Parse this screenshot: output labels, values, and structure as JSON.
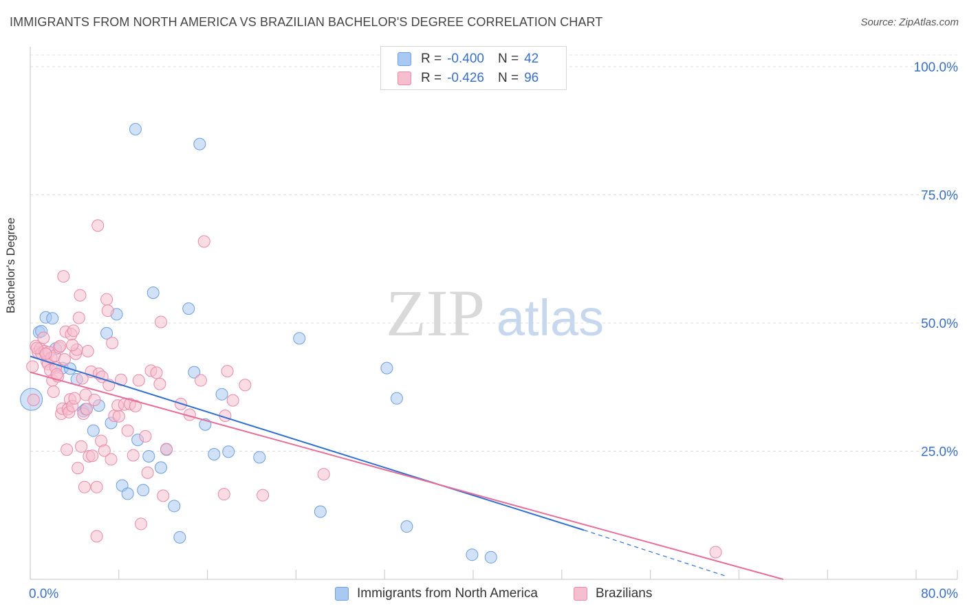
{
  "title": "IMMIGRANTS FROM NORTH AMERICA VS BRAZILIAN BACHELOR'S DEGREE CORRELATION CHART",
  "source": "Source: ZipAtlas.com",
  "watermark": {
    "zip": "ZIP",
    "atlas": "atlas"
  },
  "legend": {
    "rows": [
      {
        "r_label": "R = ",
        "r_value": "-0.400",
        "n_label": "N = ",
        "n_value": "42",
        "color": "#a9c8f2",
        "border": "#6c9fe0"
      },
      {
        "r_label": "R = ",
        "r_value": "-0.426",
        "n_label": "N = ",
        "n_value": "96",
        "color": "#f6bfd0",
        "border": "#e889a8"
      }
    ]
  },
  "bottom_legend": {
    "items": [
      {
        "label": "Immigrants from North America",
        "color": "#a9c8f2",
        "border": "#6c9fe0"
      },
      {
        "label": "Brazilians",
        "color": "#f6bfd0",
        "border": "#e889a8"
      }
    ]
  },
  "chart_data": {
    "type": "scatter",
    "title": "IMMIGRANTS FROM NORTH AMERICA VS BRAZILIAN BACHELOR'S DEGREE CORRELATION CHART",
    "xlabel": "",
    "ylabel": "Bachelor's Degree",
    "xlim": [
      0,
      80
    ],
    "ylim": [
      0,
      100
    ],
    "x_tick_labels": [
      "0.0%",
      "80.0%"
    ],
    "y_tick_labels": [
      "100.0%",
      "75.0%",
      "50.0%",
      "25.0%"
    ],
    "y_ticks": [
      100,
      75,
      50,
      25
    ],
    "grid": true,
    "series": [
      {
        "name": "Immigrants from North America",
        "color": "#6c9fe0",
        "fill": "#a9c8f2",
        "line_color": "#2f6fd0",
        "trend": {
          "x": [
            0,
            50
          ],
          "y": [
            43.5,
            9.6
          ],
          "dashed_to": [
            63,
            0.5
          ]
        },
        "points": [
          {
            "x": 0.1,
            "y": 35.1,
            "big": true
          },
          {
            "x": 0.8,
            "y": 48.2
          },
          {
            "x": 1.4,
            "y": 51.1
          },
          {
            "x": 2.0,
            "y": 50.9
          },
          {
            "x": 2.3,
            "y": 45.0
          },
          {
            "x": 2.9,
            "y": 41.2
          },
          {
            "x": 3.6,
            "y": 41.1
          },
          {
            "x": 4.2,
            "y": 39.0
          },
          {
            "x": 4.8,
            "y": 32.8
          },
          {
            "x": 5.0,
            "y": 33.2
          },
          {
            "x": 5.7,
            "y": 29.0
          },
          {
            "x": 6.2,
            "y": 33.9
          },
          {
            "x": 6.9,
            "y": 48.0
          },
          {
            "x": 7.3,
            "y": 30.5
          },
          {
            "x": 7.8,
            "y": 51.7
          },
          {
            "x": 8.3,
            "y": 18.3
          },
          {
            "x": 8.8,
            "y": 16.7
          },
          {
            "x": 9.5,
            "y": 87.8
          },
          {
            "x": 9.7,
            "y": 27.2
          },
          {
            "x": 10.2,
            "y": 17.4
          },
          {
            "x": 10.7,
            "y": 24.0
          },
          {
            "x": 11.1,
            "y": 55.9
          },
          {
            "x": 11.8,
            "y": 21.8
          },
          {
            "x": 12.3,
            "y": 25.3
          },
          {
            "x": 13.0,
            "y": 14.3
          },
          {
            "x": 13.5,
            "y": 8.2
          },
          {
            "x": 14.3,
            "y": 52.8
          },
          {
            "x": 14.8,
            "y": 40.4
          },
          {
            "x": 15.3,
            "y": 84.9
          },
          {
            "x": 15.8,
            "y": 30.2
          },
          {
            "x": 16.6,
            "y": 24.4
          },
          {
            "x": 17.3,
            "y": 36.1
          },
          {
            "x": 17.9,
            "y": 24.9
          },
          {
            "x": 20.7,
            "y": 23.8
          },
          {
            "x": 24.3,
            "y": 47.0
          },
          {
            "x": 26.2,
            "y": 13.2
          },
          {
            "x": 32.2,
            "y": 41.2
          },
          {
            "x": 33.1,
            "y": 35.3
          },
          {
            "x": 34.0,
            "y": 10.3
          },
          {
            "x": 39.9,
            "y": 4.8
          },
          {
            "x": 41.6,
            "y": 4.3
          },
          {
            "x": 1.0,
            "y": 48.4
          }
        ]
      },
      {
        "name": "Brazilians",
        "color": "#e889a8",
        "fill": "#f6bfd0",
        "line_color": "#e86d97",
        "trend": {
          "x": [
            0,
            68
          ],
          "y": [
            40.4,
            0
          ]
        },
        "points": [
          {
            "x": 0.2,
            "y": 41.5
          },
          {
            "x": 0.3,
            "y": 35.0
          },
          {
            "x": 0.5,
            "y": 45.5
          },
          {
            "x": 0.7,
            "y": 44.3
          },
          {
            "x": 0.9,
            "y": 45.0
          },
          {
            "x": 1.0,
            "y": 44.1
          },
          {
            "x": 1.2,
            "y": 47.1
          },
          {
            "x": 1.3,
            "y": 44.5
          },
          {
            "x": 1.5,
            "y": 42.5
          },
          {
            "x": 1.6,
            "y": 42.0
          },
          {
            "x": 1.7,
            "y": 44.3
          },
          {
            "x": 1.8,
            "y": 40.8
          },
          {
            "x": 1.9,
            "y": 43.2
          },
          {
            "x": 2.0,
            "y": 38.8
          },
          {
            "x": 2.1,
            "y": 36.6
          },
          {
            "x": 2.2,
            "y": 43.6
          },
          {
            "x": 2.3,
            "y": 41.3
          },
          {
            "x": 2.5,
            "y": 39.6
          },
          {
            "x": 2.6,
            "y": 45.2
          },
          {
            "x": 2.7,
            "y": 45.5
          },
          {
            "x": 2.8,
            "y": 32.3
          },
          {
            "x": 2.9,
            "y": 33.3
          },
          {
            "x": 3.0,
            "y": 59.1
          },
          {
            "x": 3.1,
            "y": 42.9
          },
          {
            "x": 3.2,
            "y": 48.3
          },
          {
            "x": 3.3,
            "y": 25.3
          },
          {
            "x": 3.4,
            "y": 33.2
          },
          {
            "x": 3.5,
            "y": 32.6
          },
          {
            "x": 3.6,
            "y": 35.1
          },
          {
            "x": 3.7,
            "y": 47.8
          },
          {
            "x": 3.8,
            "y": 33.8
          },
          {
            "x": 3.9,
            "y": 48.5
          },
          {
            "x": 4.0,
            "y": 35.3
          },
          {
            "x": 4.1,
            "y": 44.0
          },
          {
            "x": 4.2,
            "y": 44.8
          },
          {
            "x": 4.3,
            "y": 21.7
          },
          {
            "x": 4.4,
            "y": 51.0
          },
          {
            "x": 4.5,
            "y": 55.4
          },
          {
            "x": 4.6,
            "y": 25.9
          },
          {
            "x": 4.7,
            "y": 39.2
          },
          {
            "x": 4.8,
            "y": 32.3
          },
          {
            "x": 4.9,
            "y": 18.0
          },
          {
            "x": 5.0,
            "y": 36.0
          },
          {
            "x": 5.1,
            "y": 33.2
          },
          {
            "x": 5.3,
            "y": 24.0
          },
          {
            "x": 5.5,
            "y": 40.5
          },
          {
            "x": 5.6,
            "y": 24.1
          },
          {
            "x": 5.8,
            "y": 35.0
          },
          {
            "x": 6.0,
            "y": 8.4
          },
          {
            "x": 6.0,
            "y": 18.0
          },
          {
            "x": 6.1,
            "y": 69.0
          },
          {
            "x": 6.2,
            "y": 40.1
          },
          {
            "x": 6.4,
            "y": 27.0
          },
          {
            "x": 6.5,
            "y": 39.5
          },
          {
            "x": 6.7,
            "y": 25.1
          },
          {
            "x": 6.9,
            "y": 54.6
          },
          {
            "x": 7.0,
            "y": 52.4
          },
          {
            "x": 7.1,
            "y": 37.9
          },
          {
            "x": 7.3,
            "y": 23.4
          },
          {
            "x": 7.4,
            "y": 46.1
          },
          {
            "x": 7.6,
            "y": 31.9
          },
          {
            "x": 7.9,
            "y": 33.9
          },
          {
            "x": 8.2,
            "y": 38.9
          },
          {
            "x": 8.5,
            "y": 34.1
          },
          {
            "x": 8.8,
            "y": 29.0
          },
          {
            "x": 9.0,
            "y": 34.2
          },
          {
            "x": 9.3,
            "y": 24.2
          },
          {
            "x": 9.5,
            "y": 33.8
          },
          {
            "x": 9.8,
            "y": 38.8
          },
          {
            "x": 10.0,
            "y": 10.8
          },
          {
            "x": 10.4,
            "y": 27.9
          },
          {
            "x": 10.6,
            "y": 20.8
          },
          {
            "x": 10.9,
            "y": 40.7
          },
          {
            "x": 11.4,
            "y": 40.3
          },
          {
            "x": 11.7,
            "y": 38.1
          },
          {
            "x": 11.8,
            "y": 50.2
          },
          {
            "x": 12.0,
            "y": 16.3
          },
          {
            "x": 12.3,
            "y": 25.4
          },
          {
            "x": 13.6,
            "y": 34.2
          },
          {
            "x": 14.4,
            "y": 32.1
          },
          {
            "x": 15.4,
            "y": 38.8
          },
          {
            "x": 15.7,
            "y": 65.9
          },
          {
            "x": 17.5,
            "y": 16.6
          },
          {
            "x": 17.6,
            "y": 31.9
          },
          {
            "x": 17.8,
            "y": 40.6
          },
          {
            "x": 18.3,
            "y": 34.9
          },
          {
            "x": 19.4,
            "y": 37.9
          },
          {
            "x": 21.0,
            "y": 16.4
          },
          {
            "x": 26.5,
            "y": 20.5
          },
          {
            "x": 61.9,
            "y": 5.3
          },
          {
            "x": 0.6,
            "y": 45.1
          },
          {
            "x": 1.4,
            "y": 44.0
          },
          {
            "x": 2.4,
            "y": 40.0
          },
          {
            "x": 8.0,
            "y": 31.8
          },
          {
            "x": 5.2,
            "y": 44.5
          },
          {
            "x": 3.8,
            "y": 45.7
          }
        ]
      }
    ]
  }
}
